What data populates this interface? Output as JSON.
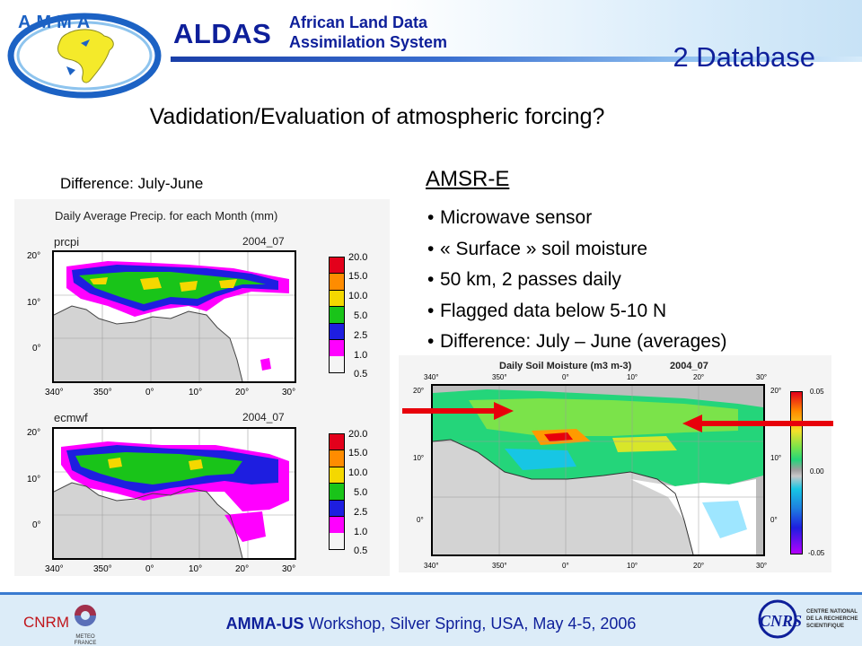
{
  "header": {
    "logo_text": "AMMA",
    "app_title": "ALDAS",
    "app_subtitle_line1": "African Land Data",
    "app_subtitle_line2": "Assimilation System",
    "section_label": "2 Database"
  },
  "main_title": "Vadidation/Evaluation of atmospheric forcing?",
  "left": {
    "difference_label": "Difference: July-June",
    "chart_heading": "Daily Average Precip. for each Month (mm)",
    "panels": [
      {
        "name": "prcpi",
        "date": "2004_07"
      },
      {
        "name": "ecmwf",
        "date": "2004_07"
      }
    ],
    "lat_ticks": [
      "20°",
      "10°",
      "0°"
    ],
    "lon_ticks": [
      "340°",
      "350°",
      "0°",
      "10°",
      "20°",
      "30°"
    ],
    "legend_values": [
      "20.0",
      "15.0",
      "10.0",
      "5.0",
      "2.5",
      "1.0",
      "0.5"
    ],
    "legend_colors": [
      "#e3001b",
      "#ff8c00",
      "#f4d800",
      "#19c419",
      "#1e1ee0",
      "#ff00ff",
      "#ffffff"
    ]
  },
  "right": {
    "heading": "AMSR-E",
    "bullets": [
      "Microwave sensor",
      "« Surface » soil moisture",
      "50 km, 2 passes daily",
      "Flagged data below 5-10 N",
      "Difference: July – June (averages)"
    ],
    "map_title": "Daily Soil Moisture (m3 m-3)",
    "map_date": "2004_07",
    "lon_ticks": [
      "340°",
      "350°",
      "0°",
      "10°",
      "20°",
      "30°"
    ],
    "lat_ticks": [
      "20°",
      "10°",
      "0°"
    ],
    "colorbar_labels": [
      "0.05",
      "0.00",
      "-0.05"
    ]
  },
  "footer": {
    "org_left": "CNRM",
    "org_left_sub": "METEO FRANCE",
    "event_bold": "AMMA-US",
    "event_rest": " Workshop, Silver Spring, USA, May 4-5, 2006",
    "org_right": "CNRS",
    "org_right_sub": "CENTRE NATIONAL DE LA RECHERCHE SCIENTIFIQUE"
  },
  "colors": {
    "title_blue": "#0e1f9a",
    "arrow_red": "#e8000b",
    "cnrm_red": "#c0161c"
  }
}
